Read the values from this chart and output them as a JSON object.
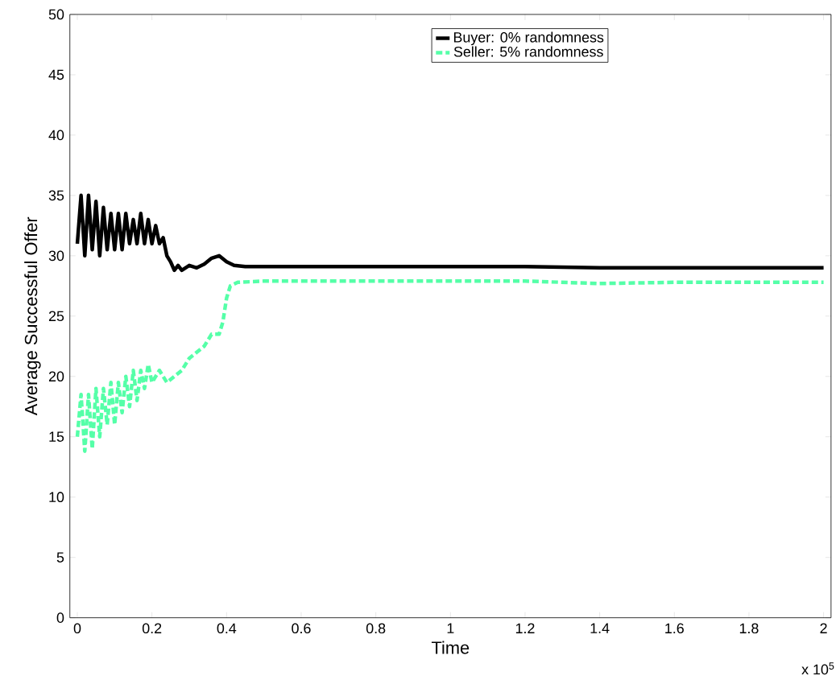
{
  "chart_data": {
    "type": "line",
    "xlabel": "Time",
    "ylabel": "Average Successful Offer",
    "annotations": [
      "x 10$^{5}$"
    ],
    "xlim": [
      -0.02,
      2.02
    ],
    "ylim": [
      0,
      50
    ],
    "xticks": [
      0,
      0.2,
      0.4,
      0.6,
      0.8,
      1,
      1.2,
      1.4,
      1.6,
      1.8,
      2
    ],
    "yticks": [
      0,
      5,
      10,
      15,
      20,
      25,
      30,
      35,
      40,
      45,
      50
    ],
    "legend": "top right",
    "marker": "none",
    "grid": false,
    "series": [
      {
        "name": "Buyer: 0% randomness",
        "color": "#000000",
        "line_style": "solid",
        "x": [
          0,
          0.01,
          0.02,
          0.03,
          0.04,
          0.05,
          0.06,
          0.07,
          0.08,
          0.09,
          0.1,
          0.11,
          0.12,
          0.13,
          0.14,
          0.15,
          0.16,
          0.17,
          0.18,
          0.19,
          0.2,
          0.21,
          0.22,
          0.23,
          0.24,
          0.25,
          0.26,
          0.27,
          0.28,
          0.3,
          0.32,
          0.34,
          0.36,
          0.38,
          0.4,
          0.42,
          0.45,
          0.6,
          0.8,
          1,
          1.2,
          1.4,
          1.6,
          1.8,
          2
        ],
        "values": [
          31,
          35,
          30,
          35,
          30.5,
          34.5,
          30,
          34,
          30.5,
          33.5,
          30.5,
          33.5,
          30.5,
          33.5,
          31,
          33,
          31,
          33.5,
          31,
          33,
          31,
          32.5,
          31,
          31.5,
          30,
          29.5,
          28.8,
          29.2,
          28.8,
          29.2,
          29,
          29.3,
          29.8,
          30,
          29.5,
          29.2,
          29.1,
          29.1,
          29.1,
          29.1,
          29.1,
          29,
          29,
          29,
          29
        ]
      },
      {
        "name": "Seller: 5% randomness",
        "color": "#55ffa8",
        "line_style": "dashed",
        "x": [
          0,
          0.01,
          0.02,
          0.03,
          0.04,
          0.05,
          0.06,
          0.07,
          0.08,
          0.09,
          0.1,
          0.11,
          0.12,
          0.13,
          0.14,
          0.15,
          0.16,
          0.17,
          0.18,
          0.19,
          0.2,
          0.22,
          0.24,
          0.26,
          0.28,
          0.3,
          0.32,
          0.34,
          0.36,
          0.38,
          0.39,
          0.4,
          0.41,
          0.43,
          0.5,
          0.6,
          0.8,
          1,
          1.2,
          1.4,
          1.6,
          1.8,
          2
        ],
        "values": [
          15,
          18.5,
          13.8,
          18.5,
          14,
          19,
          15,
          19,
          16,
          19.5,
          16,
          19.5,
          17,
          20,
          17.5,
          20.5,
          18,
          20.5,
          19,
          21,
          19.5,
          20.5,
          19.5,
          20,
          20.5,
          21.5,
          22,
          22.5,
          23.5,
          23.5,
          24.5,
          26.5,
          27.5,
          27.8,
          27.9,
          27.9,
          27.9,
          27.9,
          27.9,
          27.7,
          27.8,
          27.8,
          27.8
        ]
      }
    ]
  }
}
